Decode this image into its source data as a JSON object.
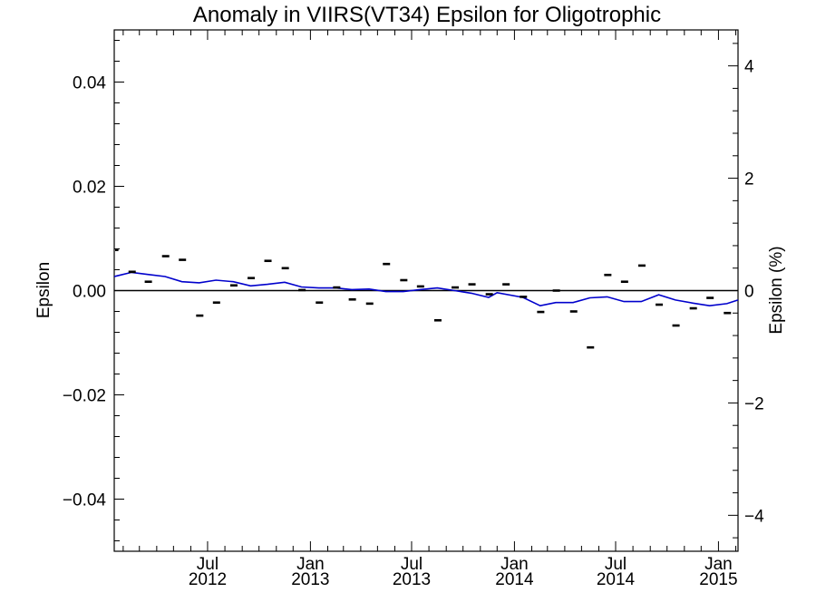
{
  "chart_data": {
    "type": "scatter",
    "title": "Anomaly in VIIRS(VT34) Epsilon for Oligotrophic",
    "ylabel": "Epsilon",
    "y2label": "Epsilon (%)",
    "xlim": [
      "2012-01-16",
      "2015-02-05"
    ],
    "ylim": [
      -0.05,
      0.05
    ],
    "y2lim": [
      -4.64,
      4.64
    ],
    "y_ticks": [
      -0.04,
      -0.02,
      0.0,
      0.02,
      0.04
    ],
    "y_tick_labels": [
      "−0.04",
      "−0.02",
      "0.00",
      "0.02",
      "0.04"
    ],
    "y2_ticks": [
      -4,
      -2,
      0,
      2,
      4
    ],
    "y2_tick_labels": [
      "−4",
      "−2",
      "0",
      "2",
      "4"
    ],
    "x_ticks": [
      {
        "date": "2012-07-01",
        "month": "Jul",
        "year": "2012"
      },
      {
        "date": "2013-01-01",
        "month": "Jan",
        "year": "2013"
      },
      {
        "date": "2013-07-01",
        "month": "Jul",
        "year": "2013"
      },
      {
        "date": "2014-01-01",
        "month": "Jan",
        "year": "2014"
      },
      {
        "date": "2014-07-01",
        "month": "Jul",
        "year": "2014"
      },
      {
        "date": "2015-01-01",
        "month": "Jan",
        "year": "2015"
      }
    ],
    "zero_line": 0.0,
    "series": [
      {
        "type": "scatter",
        "marker": "dash",
        "color": "#000000",
        "points": [
          {
            "date": "2012-01-17",
            "value": 0.0078
          },
          {
            "date": "2012-02-17",
            "value": 0.0036
          },
          {
            "date": "2012-03-17",
            "value": 0.0017
          },
          {
            "date": "2012-04-17",
            "value": 0.0066
          },
          {
            "date": "2012-05-17",
            "value": 0.0059
          },
          {
            "date": "2012-06-17",
            "value": -0.0048
          },
          {
            "date": "2012-07-17",
            "value": -0.0023
          },
          {
            "date": "2012-08-17",
            "value": 0.001
          },
          {
            "date": "2012-09-17",
            "value": 0.0024
          },
          {
            "date": "2012-10-17",
            "value": 0.0057
          },
          {
            "date": "2012-11-17",
            "value": 0.0043
          },
          {
            "date": "2012-12-17",
            "value": 0.0001
          },
          {
            "date": "2013-01-17",
            "value": -0.0023
          },
          {
            "date": "2013-02-17",
            "value": 0.0006
          },
          {
            "date": "2013-03-17",
            "value": -0.0017
          },
          {
            "date": "2013-04-17",
            "value": -0.0025
          },
          {
            "date": "2013-05-17",
            "value": 0.0051
          },
          {
            "date": "2013-06-17",
            "value": 0.002
          },
          {
            "date": "2013-07-17",
            "value": 0.0008
          },
          {
            "date": "2013-08-17",
            "value": -0.0057
          },
          {
            "date": "2013-09-17",
            "value": 0.0006
          },
          {
            "date": "2013-10-17",
            "value": 0.0012
          },
          {
            "date": "2013-11-17",
            "value": -0.0007
          },
          {
            "date": "2013-12-17",
            "value": 0.0012
          },
          {
            "date": "2014-01-17",
            "value": -0.0012
          },
          {
            "date": "2014-02-17",
            "value": -0.0041
          },
          {
            "date": "2014-03-17",
            "value": 0.0
          },
          {
            "date": "2014-04-17",
            "value": -0.004
          },
          {
            "date": "2014-05-17",
            "value": -0.0109
          },
          {
            "date": "2014-06-17",
            "value": 0.003
          },
          {
            "date": "2014-07-17",
            "value": 0.0017
          },
          {
            "date": "2014-08-17",
            "value": 0.0048
          },
          {
            "date": "2014-09-17",
            "value": -0.0027
          },
          {
            "date": "2014-10-17",
            "value": -0.0067
          },
          {
            "date": "2014-11-17",
            "value": -0.0034
          },
          {
            "date": "2014-12-17",
            "value": -0.0014
          },
          {
            "date": "2015-01-17",
            "value": -0.0043
          }
        ]
      },
      {
        "type": "line",
        "color": "#0000cc",
        "points": [
          {
            "date": "2012-01-16",
            "value": 0.0027
          },
          {
            "date": "2012-02-16",
            "value": 0.0035
          },
          {
            "date": "2012-03-16",
            "value": 0.0031
          },
          {
            "date": "2012-04-16",
            "value": 0.0027
          },
          {
            "date": "2012-05-16",
            "value": 0.0017
          },
          {
            "date": "2012-06-16",
            "value": 0.0015
          },
          {
            "date": "2012-07-16",
            "value": 0.002
          },
          {
            "date": "2012-08-16",
            "value": 0.0017
          },
          {
            "date": "2012-09-16",
            "value": 0.0009
          },
          {
            "date": "2012-10-16",
            "value": 0.0012
          },
          {
            "date": "2012-11-16",
            "value": 0.0016
          },
          {
            "date": "2012-12-16",
            "value": 0.0007
          },
          {
            "date": "2013-01-16",
            "value": 0.0005
          },
          {
            "date": "2013-02-16",
            "value": 0.0005
          },
          {
            "date": "2013-03-16",
            "value": 0.0002
          },
          {
            "date": "2013-04-16",
            "value": 0.0003
          },
          {
            "date": "2013-05-16",
            "value": -0.0002
          },
          {
            "date": "2013-06-16",
            "value": -0.0002
          },
          {
            "date": "2013-07-16",
            "value": 0.0002
          },
          {
            "date": "2013-08-16",
            "value": 0.0005
          },
          {
            "date": "2013-09-16",
            "value": 0.0
          },
          {
            "date": "2013-10-16",
            "value": -0.0005
          },
          {
            "date": "2013-11-16",
            "value": -0.0013
          },
          {
            "date": "2013-12-01",
            "value": -0.0004
          },
          {
            "date": "2014-01-16",
            "value": -0.0013
          },
          {
            "date": "2014-02-16",
            "value": -0.0029
          },
          {
            "date": "2014-03-16",
            "value": -0.0023
          },
          {
            "date": "2014-04-16",
            "value": -0.0023
          },
          {
            "date": "2014-05-16",
            "value": -0.0014
          },
          {
            "date": "2014-06-16",
            "value": -0.0012
          },
          {
            "date": "2014-07-16",
            "value": -0.0021
          },
          {
            "date": "2014-08-16",
            "value": -0.0021
          },
          {
            "date": "2014-09-16",
            "value": -0.0008
          },
          {
            "date": "2014-10-16",
            "value": -0.0018
          },
          {
            "date": "2014-11-16",
            "value": -0.0024
          },
          {
            "date": "2014-12-16",
            "value": -0.0029
          },
          {
            "date": "2015-01-16",
            "value": -0.0025
          },
          {
            "date": "2015-02-05",
            "value": -0.0018
          }
        ]
      }
    ]
  }
}
